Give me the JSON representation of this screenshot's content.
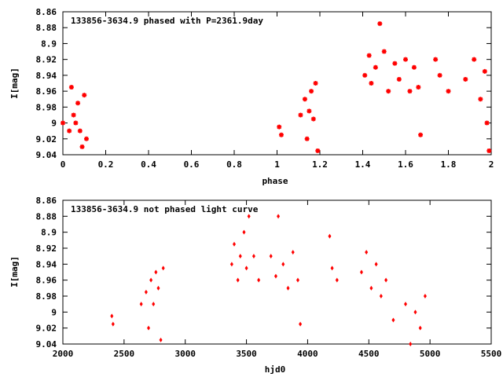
{
  "chart_data": [
    {
      "type": "scatter",
      "title": "133856-3634.9 phased with P=2361.9day",
      "xlabel": "phase",
      "ylabel": "I[mag]",
      "xlim": [
        0,
        2
      ],
      "ylim": [
        8.86,
        9.04
      ],
      "y_inverted": true,
      "grid": false,
      "x_ticks": [
        0,
        0.2,
        0.4,
        0.6,
        0.8,
        1,
        1.2,
        1.4,
        1.6,
        1.8,
        2
      ],
      "x_tick_labels": [
        "0",
        "0.2",
        "0.4",
        "0.6",
        "0.8",
        "1",
        "1.2",
        "1.4",
        "1.6",
        "1.8",
        "2"
      ],
      "y_ticks": [
        8.86,
        8.88,
        8.9,
        8.92,
        8.94,
        8.96,
        8.98,
        9,
        9.02,
        9.04
      ],
      "y_tick_labels": [
        "8.86",
        "8.88",
        "8.9",
        "8.92",
        "8.94",
        "8.96",
        "8.98",
        "9",
        "9.02",
        "9.04"
      ],
      "marker": "star",
      "color": "#ff0000",
      "points": [
        [
          0.0,
          9.0
        ],
        [
          0.03,
          9.01
        ],
        [
          0.04,
          8.955
        ],
        [
          0.05,
          8.99
        ],
        [
          0.06,
          9.0
        ],
        [
          0.07,
          8.975
        ],
        [
          0.08,
          9.01
        ],
        [
          0.09,
          9.03
        ],
        [
          0.1,
          8.965
        ],
        [
          0.11,
          9.02
        ],
        [
          1.01,
          9.005
        ],
        [
          1.02,
          9.015
        ],
        [
          1.11,
          8.99
        ],
        [
          1.13,
          8.97
        ],
        [
          1.14,
          9.02
        ],
        [
          1.15,
          8.985
        ],
        [
          1.16,
          8.96
        ],
        [
          1.17,
          8.995
        ],
        [
          1.18,
          8.95
        ],
        [
          1.19,
          9.035
        ],
        [
          1.41,
          8.94
        ],
        [
          1.43,
          8.915
        ],
        [
          1.44,
          8.95
        ],
        [
          1.46,
          8.93
        ],
        [
          1.48,
          8.875
        ],
        [
          1.5,
          8.91
        ],
        [
          1.52,
          8.96
        ],
        [
          1.55,
          8.925
        ],
        [
          1.57,
          8.945
        ],
        [
          1.6,
          8.92
        ],
        [
          1.62,
          8.96
        ],
        [
          1.64,
          8.93
        ],
        [
          1.66,
          8.955
        ],
        [
          1.67,
          9.015
        ],
        [
          1.74,
          8.92
        ],
        [
          1.76,
          8.94
        ],
        [
          1.8,
          8.96
        ],
        [
          1.88,
          8.945
        ],
        [
          1.92,
          8.92
        ],
        [
          1.95,
          8.97
        ],
        [
          1.97,
          8.935
        ],
        [
          1.98,
          9.0
        ],
        [
          1.99,
          9.035
        ]
      ]
    },
    {
      "type": "scatter",
      "title": "133856-3634.9 not phased light curve",
      "xlabel": "hjd0",
      "ylabel": "I[mag]",
      "xlim": [
        2000,
        5500
      ],
      "ylim": [
        8.86,
        9.04
      ],
      "y_inverted": true,
      "grid": false,
      "x_ticks": [
        2000,
        2500,
        3000,
        3500,
        4000,
        4500,
        5000,
        5500
      ],
      "x_tick_labels": [
        "2000",
        "2500",
        "3000",
        "3500",
        "4000",
        "4500",
        "5000",
        "5500"
      ],
      "y_ticks": [
        8.86,
        8.88,
        8.9,
        8.92,
        8.94,
        8.96,
        8.98,
        9,
        9.02,
        9.04
      ],
      "y_tick_labels": [
        "8.86",
        "8.88",
        "8.9",
        "8.92",
        "8.94",
        "8.96",
        "8.98",
        "9",
        "9.02",
        "9.04"
      ],
      "marker": "diamond",
      "color": "#ff0000",
      "points": [
        [
          2400,
          9.005
        ],
        [
          2410,
          9.015
        ],
        [
          2640,
          8.99
        ],
        [
          2680,
          8.975
        ],
        [
          2700,
          9.02
        ],
        [
          2720,
          8.96
        ],
        [
          2740,
          8.99
        ],
        [
          2760,
          8.95
        ],
        [
          2780,
          8.97
        ],
        [
          2800,
          9.035
        ],
        [
          2820,
          8.945
        ],
        [
          3380,
          8.94
        ],
        [
          3400,
          8.915
        ],
        [
          3430,
          8.96
        ],
        [
          3450,
          8.93
        ],
        [
          3480,
          8.9
        ],
        [
          3500,
          8.945
        ],
        [
          3520,
          8.88
        ],
        [
          3560,
          8.93
        ],
        [
          3600,
          8.96
        ],
        [
          3700,
          8.93
        ],
        [
          3740,
          8.955
        ],
        [
          3760,
          8.88
        ],
        [
          3800,
          8.94
        ],
        [
          3840,
          8.97
        ],
        [
          3880,
          8.925
        ],
        [
          3920,
          8.96
        ],
        [
          3940,
          9.015
        ],
        [
          4180,
          8.905
        ],
        [
          4200,
          8.945
        ],
        [
          4240,
          8.96
        ],
        [
          4440,
          8.95
        ],
        [
          4480,
          8.925
        ],
        [
          4520,
          8.97
        ],
        [
          4560,
          8.94
        ],
        [
          4600,
          8.98
        ],
        [
          4640,
          8.96
        ],
        [
          4700,
          9.01
        ],
        [
          4800,
          8.99
        ],
        [
          4840,
          9.04
        ],
        [
          4880,
          9.0
        ],
        [
          4920,
          9.02
        ],
        [
          4960,
          8.98
        ]
      ]
    }
  ]
}
